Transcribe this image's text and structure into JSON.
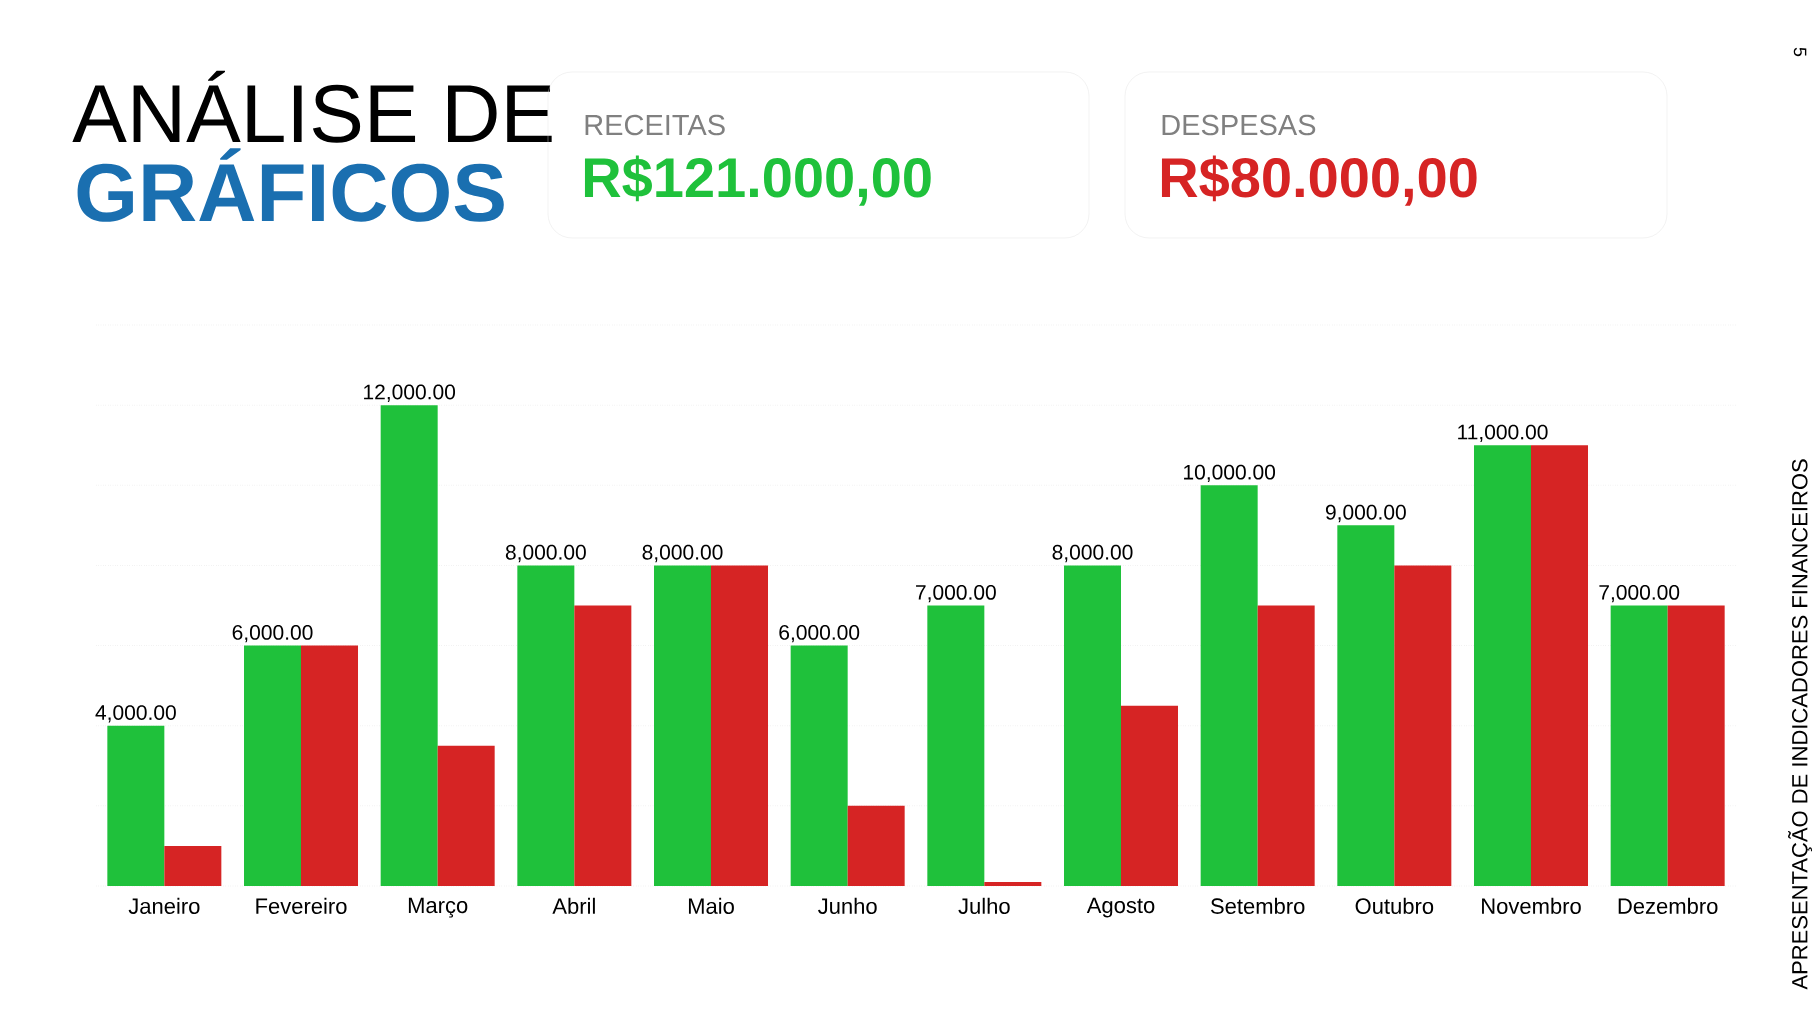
{
  "chart_data": {
    "type": "bar",
    "title": "ANÁLISE DE",
    "subtitle": "GRÁFICOS",
    "annotations": [
      "RECEITAS",
      "R$121.000,00",
      "DESPESAS",
      "R$80.000,00",
      "APRESENTAÇÃO DE INDICADORES FINANCEIROS",
      "5"
    ],
    "categories": [
      "Janeiro",
      "Fevereiro",
      "Março",
      "Abril",
      "Maio",
      "Junho",
      "Julho",
      "Agosto",
      "Setembro",
      "Outubro",
      "Novembro",
      "Dezembro"
    ],
    "series": [
      {
        "color": "#1fc13b",
        "values": [
          4000,
          6000,
          12000,
          8000,
          8000,
          6000,
          7000,
          8000,
          10000,
          9000,
          11000,
          7000
        ],
        "value_labels": [
          "4,000.00",
          "6,000.00",
          "12,000.00",
          "8,000.00",
          "8,000.00",
          "6,000.00",
          "7,000.00",
          "8,000.00",
          "10,000.00",
          "9,000.00",
          "11,000.00",
          "7,000.00"
        ]
      },
      {
        "color": "#d62424",
        "values": [
          1000,
          6000,
          3500,
          7000,
          8000,
          2000,
          100,
          4500,
          7000,
          8000,
          11000,
          7000
        ]
      }
    ],
    "ylim": [
      0,
      14000
    ],
    "yticks": [
      {
        "value": 0,
        "label": null
      },
      {
        "value": 2000,
        "label": null
      },
      {
        "value": 4000,
        "label": null
      },
      {
        "value": 6000,
        "label": null
      },
      {
        "value": 8000,
        "label": null
      },
      {
        "value": 10000,
        "label": null
      },
      {
        "value": 12000,
        "label": null
      },
      {
        "value": 14000,
        "label": null
      }
    ],
    "grid": "y",
    "tick_labels": "x"
  }
}
